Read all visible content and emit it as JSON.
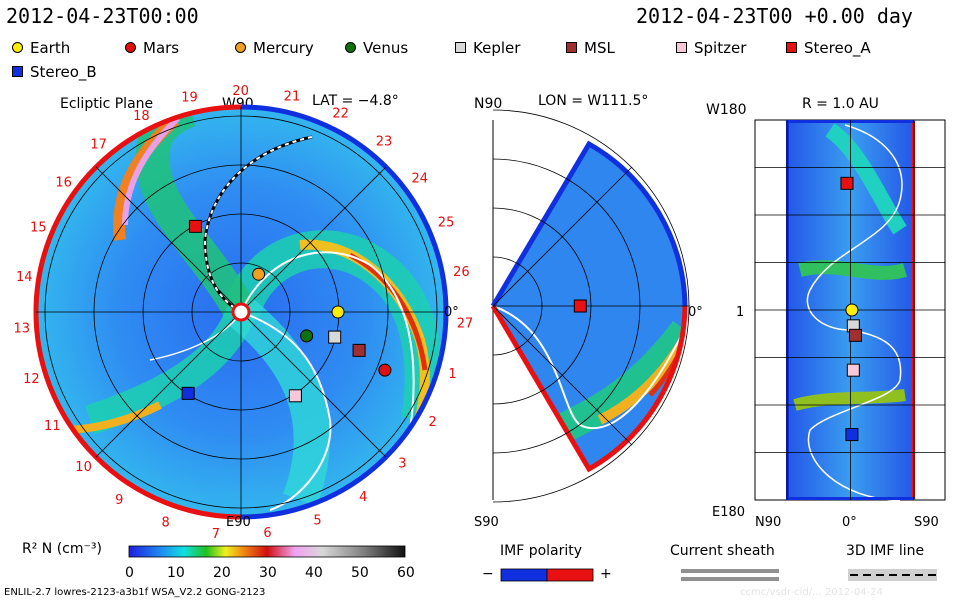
{
  "header": {
    "left_time": "2012-04-23T00:00",
    "right_time": "2012-04-23T00 +0.00 day"
  },
  "legend": [
    {
      "name": "Earth",
      "color": "#ffee00",
      "shape": "circle"
    },
    {
      "name": "Mars",
      "color": "#e01010",
      "shape": "circle"
    },
    {
      "name": "Mercury",
      "color": "#f0a020",
      "shape": "circle"
    },
    {
      "name": "Venus",
      "color": "#107010",
      "shape": "circle"
    },
    {
      "name": "Kepler",
      "color": "#d8d8d8",
      "shape": "square"
    },
    {
      "name": "MSL",
      "color": "#a03030",
      "shape": "square"
    },
    {
      "name": "Spitzer",
      "color": "#f8c8d8",
      "shape": "square"
    },
    {
      "name": "Stereo_A",
      "color": "#e81010",
      "shape": "square"
    },
    {
      "name": "Stereo_B",
      "color": "#1030e0",
      "shape": "square"
    }
  ],
  "chart_data": [
    {
      "type": "heatmap",
      "title": "Ecliptic Plane",
      "subtitle": "LAT = −4.8°",
      "top_label": "W90",
      "bottom_label": "E90",
      "right_label": "0°",
      "radial_ticks": [
        "19",
        "20",
        "21",
        "22",
        "23",
        "24",
        "25",
        "26",
        "27",
        "1",
        "2",
        "3",
        "4",
        "5",
        "6",
        "7",
        "8",
        "9",
        "10",
        "11",
        "12",
        "13",
        "14",
        "15",
        "16",
        "17",
        "18"
      ],
      "objects": [
        {
          "name": "Earth",
          "r_au": 1.0,
          "lon_deg": 0
        },
        {
          "name": "Mars",
          "r_au": 1.6,
          "lon_deg": -22
        },
        {
          "name": "Mercury",
          "r_au": 0.43,
          "lon_deg": 65
        },
        {
          "name": "Venus",
          "r_au": 0.72,
          "lon_deg": -20
        },
        {
          "name": "Kepler",
          "r_au": 1.0,
          "lon_deg": -15
        },
        {
          "name": "MSL",
          "r_au": 1.28,
          "lon_deg": -18
        },
        {
          "name": "Spitzer",
          "r_au": 1.03,
          "lon_deg": -57
        },
        {
          "name": "Stereo_A",
          "r_au": 1.0,
          "lon_deg": 118
        },
        {
          "name": "Stereo_B",
          "r_au": 1.0,
          "lon_deg": -123
        }
      ]
    },
    {
      "type": "heatmap",
      "title": "LON = W111.5°",
      "top_label": "N90",
      "bottom_label": "S90",
      "right_label": "0°",
      "objects": [
        {
          "name": "Stereo_A",
          "r_au": 0.9,
          "lat_deg": 0
        }
      ]
    },
    {
      "type": "heatmap",
      "title": "R = 1.0 AU",
      "top_label": "W180",
      "left_mid_label": "1",
      "bottom_left_label": "E180",
      "x_tick_labels": [
        "N90",
        "0°",
        "S90"
      ],
      "objects": [
        {
          "name": "Stereo_A",
          "lat_deg": 5,
          "lon_deg": 120
        },
        {
          "name": "Earth",
          "lat_deg": -2,
          "lon_deg": 0
        },
        {
          "name": "Kepler",
          "lat_deg": -4,
          "lon_deg": -15
        },
        {
          "name": "MSL",
          "lat_deg": -7,
          "lon_deg": -24
        },
        {
          "name": "Spitzer",
          "lat_deg": -4,
          "lon_deg": -57
        },
        {
          "name": "Stereo_B",
          "lat_deg": -2,
          "lon_deg": -118
        }
      ]
    }
  ],
  "colorbar": {
    "label": "R² N (cm⁻³)",
    "ticks": [
      "0",
      "10",
      "20",
      "30",
      "40",
      "50",
      "60"
    ],
    "min": 0,
    "max": 60
  },
  "imf": {
    "title": "IMF polarity",
    "minus": "−",
    "plus": "+",
    "sheath_title": "Current sheath",
    "line_title": "3D IMF line"
  },
  "footer": {
    "model": "ENLIL-2.7 lowres-2123-a3b1f WSA_V2.2 GONG-2123",
    "watermark": "ccmc/vsdr-cld/...   2012-04-24"
  }
}
